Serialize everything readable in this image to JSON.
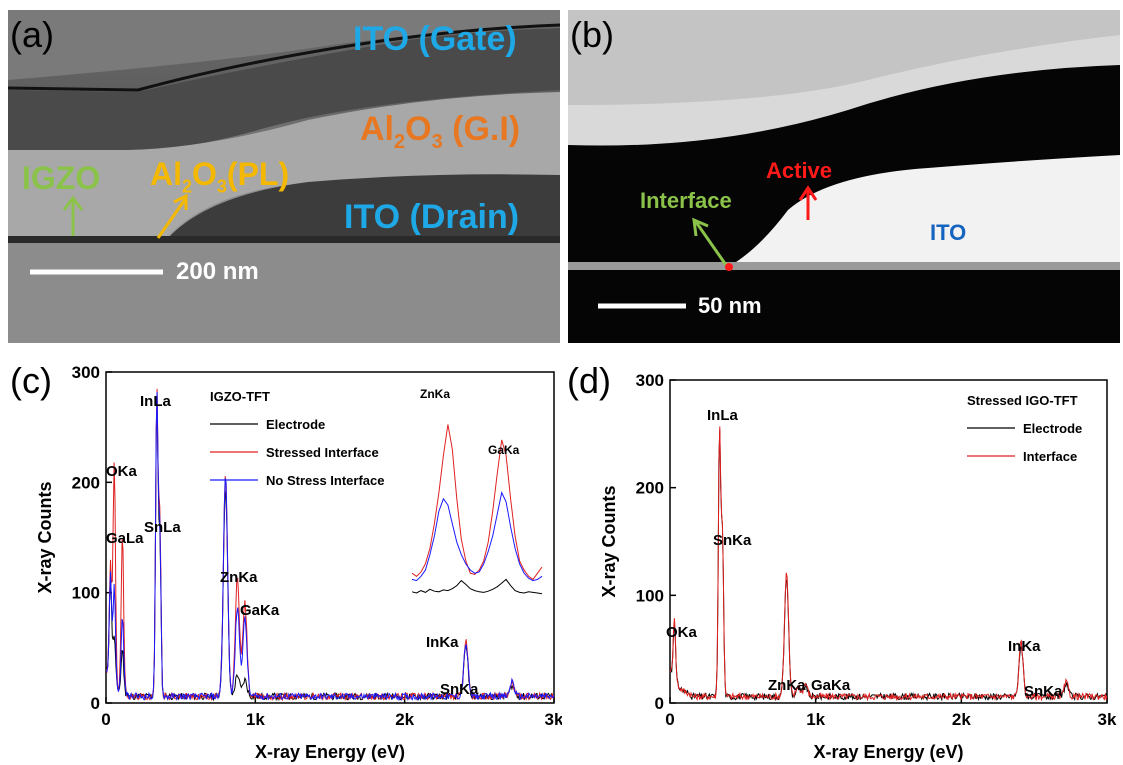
{
  "panels": {
    "a": {
      "letter": "(a)",
      "labels": {
        "ito_gate": "ITO (Gate)",
        "al2o3_gi_main": "Al",
        "al2o3_gi_sub2": "2",
        "al2o3_gi_o": "O",
        "al2o3_gi_sub3": "3",
        "al2o3_gi_tail": " (G.I)",
        "igzo": "IGZO",
        "al2o3_pl_main": "Al",
        "al2o3_pl_sub2": "2",
        "al2o3_pl_o": "O",
        "al2o3_pl_sub3": "3",
        "al2o3_pl_tail": "(PL)",
        "ito_drain": "ITO (Drain)",
        "scale": "200 nm"
      }
    },
    "b": {
      "letter": "(b)",
      "labels": {
        "active": "Active",
        "interface": "Interface",
        "ito": "ITO",
        "scale": "50 nm"
      }
    },
    "c": {
      "letter": "(c)"
    },
    "d": {
      "letter": "(d)"
    }
  },
  "colors": {
    "electrode": "#000000",
    "stressed_interface": "#e02020",
    "no_stress_interface": "#1a1aff",
    "interface_d": "#e02020",
    "ito_label": "#1ea8e6",
    "al2o3_label": "#e87722",
    "igzo_label": "#8bc34a",
    "al2o3_pl_label": "#f5b800",
    "active_label": "#ff1a1a",
    "interface_label": "#8bc34a",
    "ito_b_label": "#1565c0"
  },
  "chart_data": [
    {
      "type": "line",
      "panel": "c",
      "xlabel": "X-ray Energy (eV)",
      "ylabel": "X-ray Counts",
      "xlim": [
        0,
        3000
      ],
      "ylim": [
        0,
        300
      ],
      "xticks": [
        "0",
        "1k",
        "2k",
        "3k"
      ],
      "yticks": [
        "0",
        "100",
        "200",
        "300"
      ],
      "legend_title": "IGZO-TFT",
      "legend_position": "top-right",
      "series": [
        {
          "name": "Electrode",
          "peaks": [
            [
              30,
              95
            ],
            [
              55,
              45
            ],
            [
              110,
              40
            ],
            [
              340,
              265
            ],
            [
              360,
              140
            ],
            [
              800,
              190
            ],
            [
              880,
              20
            ],
            [
              930,
              15
            ],
            [
              2410,
              45
            ],
            [
              2720,
              10
            ]
          ]
        },
        {
          "name": "Stressed Interface",
          "peaks": [
            [
              30,
              105
            ],
            [
              55,
              205
            ],
            [
              110,
              145
            ],
            [
              340,
              272
            ],
            [
              360,
              160
            ],
            [
              800,
              200
            ],
            [
              880,
              108
            ],
            [
              930,
              85
            ],
            [
              2410,
              50
            ],
            [
              2720,
              12
            ]
          ]
        },
        {
          "name": "No Stress Interface",
          "peaks": [
            [
              30,
              95
            ],
            [
              55,
              90
            ],
            [
              110,
              70
            ],
            [
              340,
              270
            ],
            [
              360,
              150
            ],
            [
              800,
              200
            ],
            [
              880,
              80
            ],
            [
              930,
              70
            ],
            [
              2410,
              48
            ],
            [
              2720,
              14
            ]
          ]
        }
      ],
      "peak_labels": [
        {
          "text": "InLa",
          "x": 340,
          "y": 272
        },
        {
          "text": "OKa",
          "x": 55,
          "y": 205
        },
        {
          "text": "GaLa",
          "x": 110,
          "y": 145
        },
        {
          "text": "SnLa",
          "x": 360,
          "y": 160
        },
        {
          "text": "ZnKa",
          "x": 810,
          "y": 108
        },
        {
          "text": "GaKa",
          "x": 930,
          "y": 85
        },
        {
          "text": "InKa",
          "x": 2410,
          "y": 50
        },
        {
          "text": "SnKa",
          "x": 2720,
          "y": 12
        }
      ],
      "inset": {
        "labels": [
          "ZnKa",
          "GaKa"
        ],
        "electrode": [
          10,
          8,
          12,
          9,
          14,
          11,
          10,
          13,
          12,
          15,
          20,
          28,
          22,
          15,
          12,
          10,
          9,
          11,
          14,
          18,
          24,
          30,
          20,
          12,
          9,
          8,
          10,
          9,
          8,
          7
        ],
        "stressed": [
          40,
          35,
          42,
          55,
          80,
          120,
          170,
          230,
          280,
          240,
          160,
          95,
          60,
          40,
          38,
          45,
          60,
          90,
          140,
          200,
          255,
          230,
          160,
          100,
          60,
          45,
          35,
          30,
          40,
          50
        ],
        "no_stress": [
          30,
          28,
          35,
          45,
          70,
          100,
          140,
          160,
          150,
          120,
          90,
          70,
          55,
          45,
          40,
          42,
          55,
          75,
          100,
          135,
          170,
          155,
          115,
          80,
          55,
          40,
          32,
          28,
          30,
          35
        ]
      }
    },
    {
      "type": "line",
      "panel": "d",
      "xlabel": "X-ray Energy (eV)",
      "ylabel": "X-ray Counts",
      "xlim": [
        0,
        3000
      ],
      "ylim": [
        0,
        300
      ],
      "xticks": [
        "0",
        "1k",
        "2k",
        "3k"
      ],
      "yticks": [
        "0",
        "100",
        "200",
        "300"
      ],
      "legend_title": "Stressed IGO-TFT",
      "legend_position": "top-right",
      "series": [
        {
          "name": "Electrode",
          "peaks": [
            [
              30,
              55
            ],
            [
              340,
              245
            ],
            [
              360,
              150
            ],
            [
              800,
              112
            ],
            [
              880,
              8
            ],
            [
              930,
              10
            ],
            [
              2410,
              48
            ],
            [
              2720,
              12
            ]
          ]
        },
        {
          "name": "Interface",
          "peaks": [
            [
              30,
              60
            ],
            [
              340,
              248
            ],
            [
              360,
              152
            ],
            [
              800,
              115
            ],
            [
              880,
              10
            ],
            [
              930,
              12
            ],
            [
              2410,
              50
            ],
            [
              2720,
              13
            ]
          ]
        }
      ],
      "peak_labels": [
        {
          "text": "InLa",
          "x": 340,
          "y": 248
        },
        {
          "text": "SnKa",
          "x": 360,
          "y": 152
        },
        {
          "text": "OKa",
          "x": 30,
          "y": 60
        },
        {
          "text": "ZnKa",
          "x": 800,
          "y": 12
        },
        {
          "text": "GaKa",
          "x": 960,
          "y": 12
        },
        {
          "text": "InKa",
          "x": 2410,
          "y": 50
        },
        {
          "text": "SnKa",
          "x": 2720,
          "y": 13
        }
      ]
    }
  ]
}
